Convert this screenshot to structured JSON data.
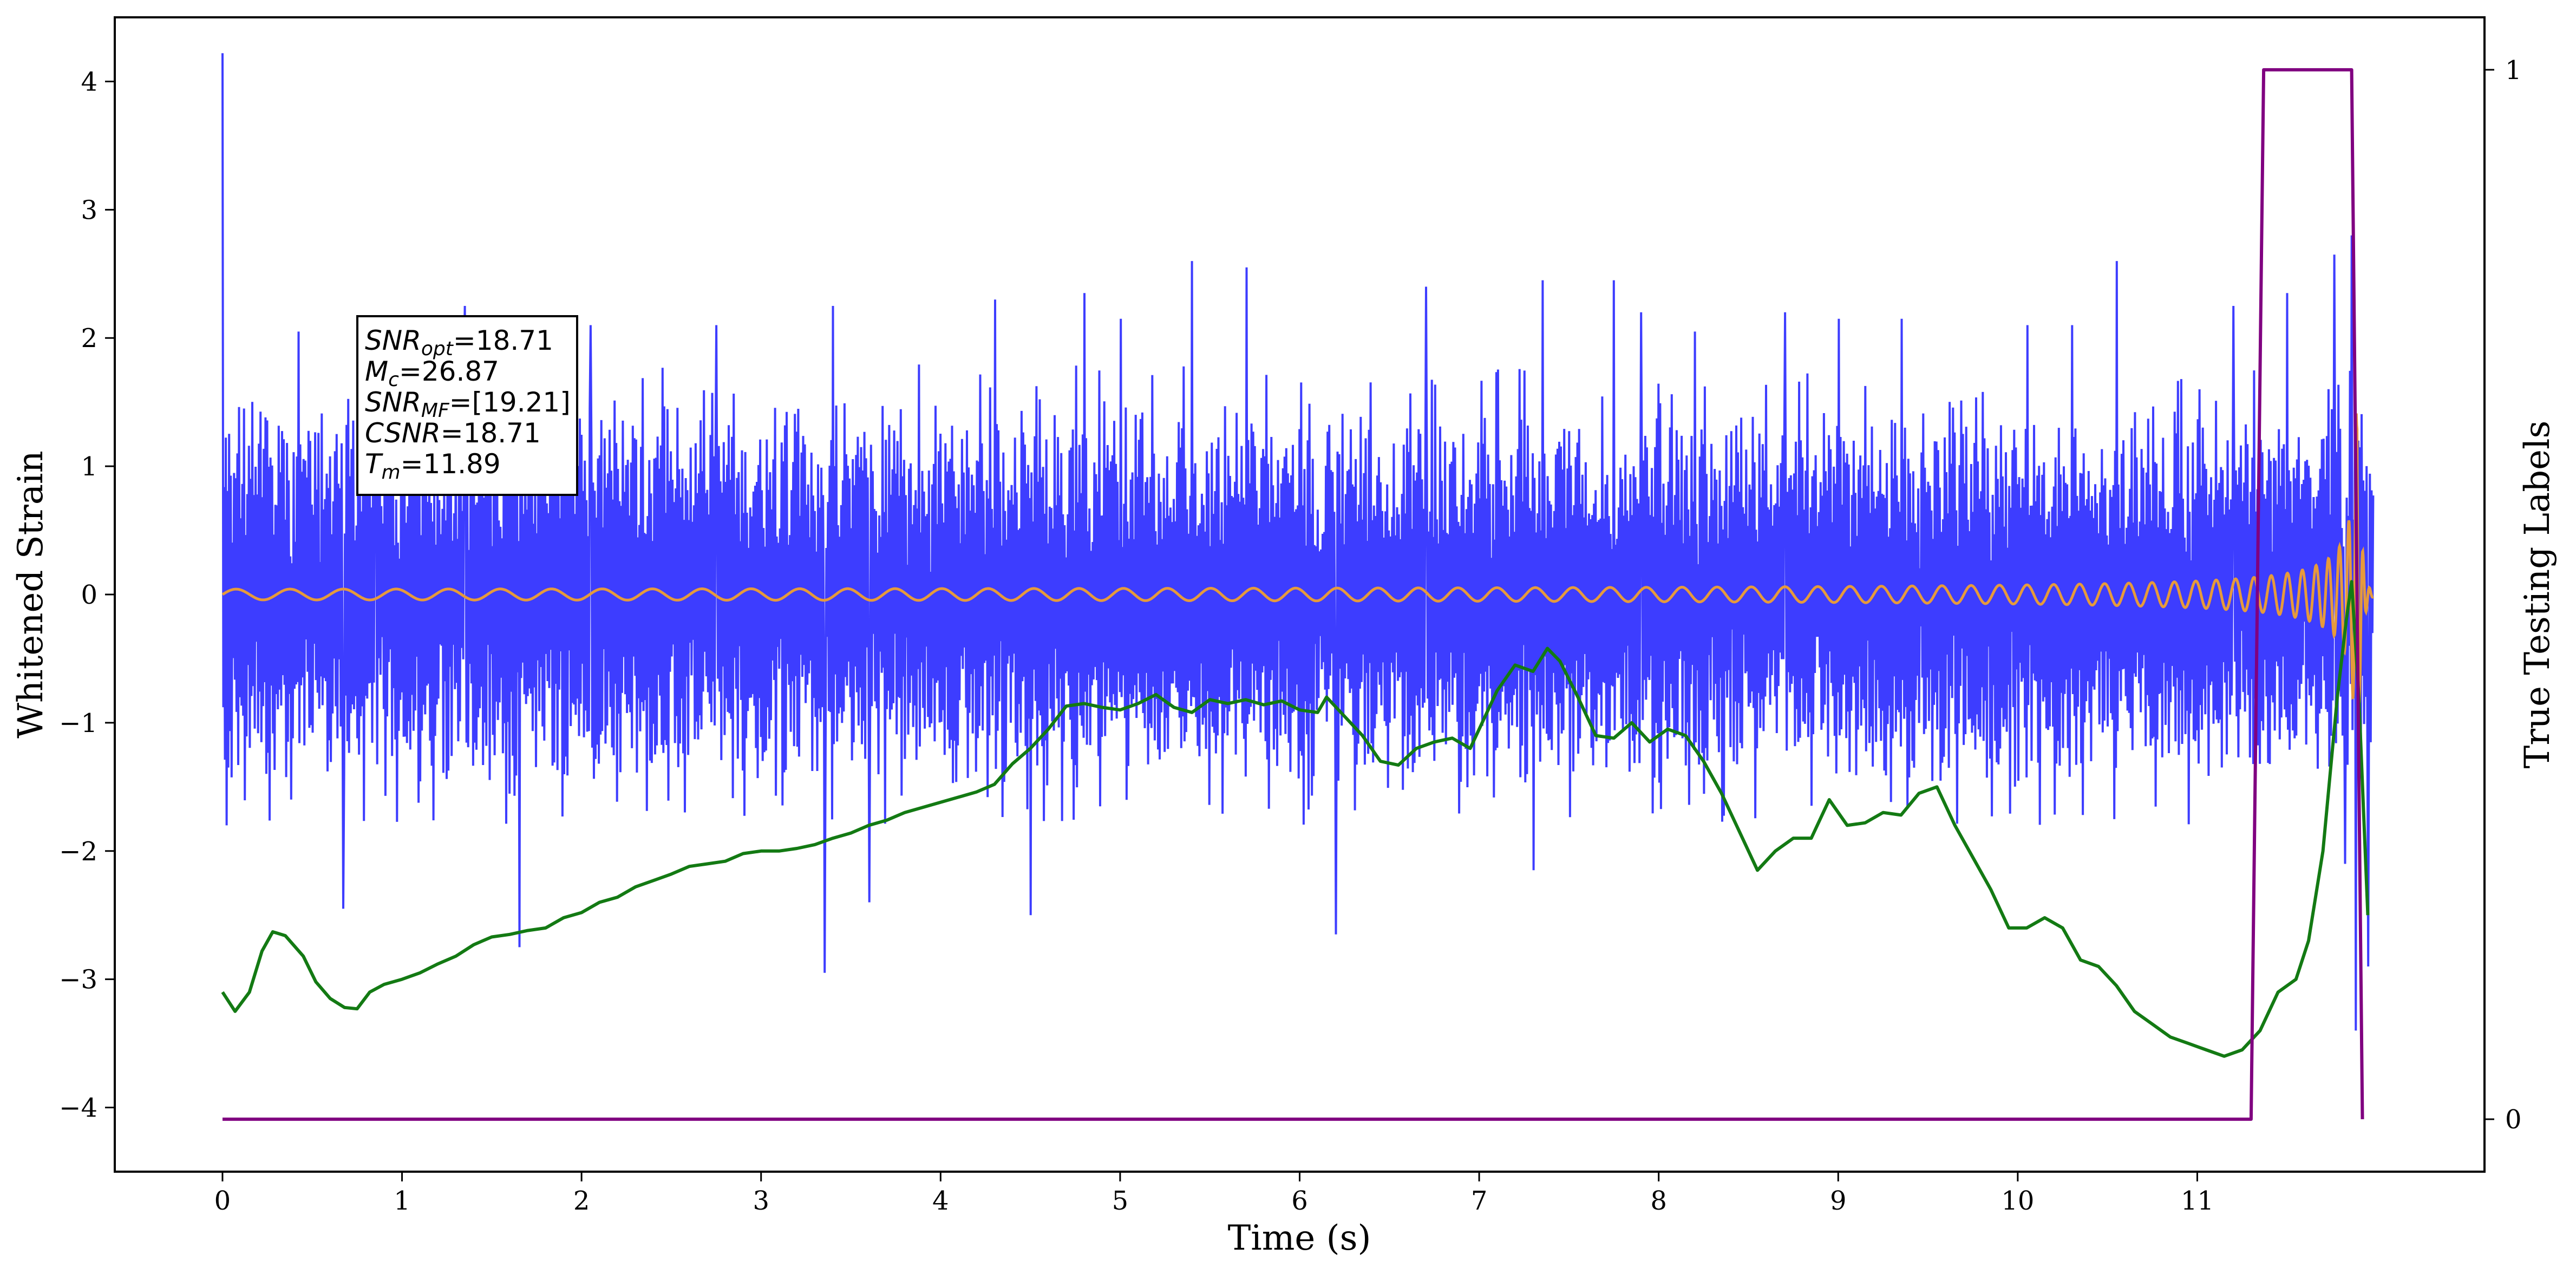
{
  "chart_data": {
    "type": "line",
    "xlabel": "Time (s)",
    "ylabel": "Whitened Strain",
    "y2label": "True Testing Labels",
    "xlim": [
      -0.6,
      12.6
    ],
    "ylim": [
      -4.5,
      4.5
    ],
    "y2lim": [
      -0.05,
      1.05
    ],
    "x_ticks": [
      0,
      1,
      2,
      3,
      4,
      5,
      6,
      7,
      8,
      9,
      10,
      11
    ],
    "y_ticks": [
      -4,
      -3,
      -2,
      -1,
      0,
      1,
      2,
      3,
      4
    ],
    "y2_ticks": [
      0,
      1
    ],
    "grid": false,
    "annotation": [
      {
        "main": "SNR",
        "sub": "opt",
        "value": "=18.71"
      },
      {
        "main": "M",
        "sub": "c",
        "value": "=26.87"
      },
      {
        "main": "SNR",
        "sub": "MF",
        "value": "=[19.21]"
      },
      {
        "main": "CSNR",
        "sub": "",
        "value": "=18.71"
      },
      {
        "main": "T",
        "sub": "m",
        "value": "=11.89"
      }
    ],
    "series": [
      {
        "kind": "noise",
        "color": "#3333ff",
        "x_start": 0.0,
        "x_end": 11.98,
        "typical_range": [
          -1.3,
          1.3
        ],
        "peaks": [
          {
            "x": 0.0,
            "y": 4.22
          },
          {
            "x": 0.02,
            "y": -1.8
          },
          {
            "x": 0.42,
            "y": 2.05
          },
          {
            "x": 0.67,
            "y": -2.45
          },
          {
            "x": 0.85,
            "y": 2.06
          },
          {
            "x": 1.35,
            "y": 2.25
          },
          {
            "x": 1.65,
            "y": -2.75
          },
          {
            "x": 2.05,
            "y": 2.1
          },
          {
            "x": 2.75,
            "y": 2.1
          },
          {
            "x": 3.4,
            "y": 2.25
          },
          {
            "x": 3.35,
            "y": -2.95
          },
          {
            "x": 3.6,
            "y": -2.4
          },
          {
            "x": 4.3,
            "y": 2.3
          },
          {
            "x": 4.5,
            "y": -2.5
          },
          {
            "x": 4.8,
            "y": 2.35
          },
          {
            "x": 5.0,
            "y": 2.15
          },
          {
            "x": 5.4,
            "y": 2.6
          },
          {
            "x": 5.7,
            "y": 2.55
          },
          {
            "x": 6.2,
            "y": -2.65
          },
          {
            "x": 6.7,
            "y": 2.4
          },
          {
            "x": 7.35,
            "y": 2.45
          },
          {
            "x": 7.3,
            "y": -2.15
          },
          {
            "x": 7.75,
            "y": 2.45
          },
          {
            "x": 7.9,
            "y": 2.2
          },
          {
            "x": 8.2,
            "y": 2.05
          },
          {
            "x": 8.7,
            "y": 2.2
          },
          {
            "x": 9.0,
            "y": 2.15
          },
          {
            "x": 9.35,
            "y": 2.15
          },
          {
            "x": 10.05,
            "y": 2.1
          },
          {
            "x": 10.3,
            "y": 2.1
          },
          {
            "x": 10.55,
            "y": 2.6
          },
          {
            "x": 11.2,
            "y": 2.25
          },
          {
            "x": 11.5,
            "y": 2.35
          },
          {
            "x": 11.76,
            "y": 2.65
          },
          {
            "x": 11.82,
            "y": -2.1
          },
          {
            "x": 11.86,
            "y": 2.8
          },
          {
            "x": 11.88,
            "y": -3.4
          },
          {
            "x": 11.95,
            "y": -2.9
          }
        ]
      },
      {
        "kind": "chirp",
        "color": "#e69a3c",
        "x_start": 0.0,
        "x_end": 11.98,
        "merger_x": 11.89,
        "peak_amplitude": 1.7
      },
      {
        "kind": "line",
        "color": "#137a13",
        "axis": "left",
        "points": [
          [
            0.0,
            -3.1
          ],
          [
            0.07,
            -3.25
          ],
          [
            0.15,
            -3.1
          ],
          [
            0.22,
            -2.78
          ],
          [
            0.28,
            -2.63
          ],
          [
            0.35,
            -2.66
          ],
          [
            0.45,
            -2.82
          ],
          [
            0.52,
            -3.02
          ],
          [
            0.6,
            -3.15
          ],
          [
            0.68,
            -3.22
          ],
          [
            0.75,
            -3.23
          ],
          [
            0.82,
            -3.1
          ],
          [
            0.9,
            -3.04
          ],
          [
            1.0,
            -3.0
          ],
          [
            1.1,
            -2.95
          ],
          [
            1.2,
            -2.88
          ],
          [
            1.3,
            -2.82
          ],
          [
            1.4,
            -2.73
          ],
          [
            1.5,
            -2.67
          ],
          [
            1.6,
            -2.65
          ],
          [
            1.7,
            -2.62
          ],
          [
            1.8,
            -2.6
          ],
          [
            1.9,
            -2.52
          ],
          [
            2.0,
            -2.48
          ],
          [
            2.1,
            -2.4
          ],
          [
            2.2,
            -2.36
          ],
          [
            2.3,
            -2.28
          ],
          [
            2.4,
            -2.23
          ],
          [
            2.5,
            -2.18
          ],
          [
            2.6,
            -2.12
          ],
          [
            2.7,
            -2.1
          ],
          [
            2.8,
            -2.08
          ],
          [
            2.9,
            -2.02
          ],
          [
            3.0,
            -2.0
          ],
          [
            3.1,
            -2.0
          ],
          [
            3.2,
            -1.98
          ],
          [
            3.3,
            -1.95
          ],
          [
            3.4,
            -1.9
          ],
          [
            3.5,
            -1.86
          ],
          [
            3.6,
            -1.8
          ],
          [
            3.7,
            -1.76
          ],
          [
            3.8,
            -1.7
          ],
          [
            3.9,
            -1.66
          ],
          [
            4.0,
            -1.62
          ],
          [
            4.1,
            -1.58
          ],
          [
            4.2,
            -1.54
          ],
          [
            4.3,
            -1.48
          ],
          [
            4.4,
            -1.32
          ],
          [
            4.5,
            -1.2
          ],
          [
            4.6,
            -1.05
          ],
          [
            4.7,
            -0.87
          ],
          [
            4.8,
            -0.85
          ],
          [
            4.9,
            -0.88
          ],
          [
            5.0,
            -0.9
          ],
          [
            5.1,
            -0.85
          ],
          [
            5.2,
            -0.78
          ],
          [
            5.3,
            -0.88
          ],
          [
            5.4,
            -0.92
          ],
          [
            5.5,
            -0.82
          ],
          [
            5.6,
            -0.85
          ],
          [
            5.7,
            -0.82
          ],
          [
            5.8,
            -0.86
          ],
          [
            5.9,
            -0.83
          ],
          [
            6.0,
            -0.9
          ],
          [
            6.1,
            -0.92
          ],
          [
            6.15,
            -0.8
          ],
          [
            6.25,
            -0.95
          ],
          [
            6.35,
            -1.1
          ],
          [
            6.45,
            -1.3
          ],
          [
            6.55,
            -1.33
          ],
          [
            6.65,
            -1.2
          ],
          [
            6.75,
            -1.15
          ],
          [
            6.85,
            -1.12
          ],
          [
            6.95,
            -1.2
          ],
          [
            7.0,
            -1.05
          ],
          [
            7.1,
            -0.75
          ],
          [
            7.2,
            -0.55
          ],
          [
            7.3,
            -0.6
          ],
          [
            7.38,
            -0.42
          ],
          [
            7.45,
            -0.52
          ],
          [
            7.55,
            -0.8
          ],
          [
            7.65,
            -1.1
          ],
          [
            7.75,
            -1.12
          ],
          [
            7.85,
            -1.0
          ],
          [
            7.95,
            -1.15
          ],
          [
            8.05,
            -1.05
          ],
          [
            8.15,
            -1.1
          ],
          [
            8.25,
            -1.3
          ],
          [
            8.35,
            -1.55
          ],
          [
            8.45,
            -1.85
          ],
          [
            8.55,
            -2.15
          ],
          [
            8.65,
            -2.0
          ],
          [
            8.75,
            -1.9
          ],
          [
            8.85,
            -1.9
          ],
          [
            8.95,
            -1.6
          ],
          [
            9.05,
            -1.8
          ],
          [
            9.15,
            -1.78
          ],
          [
            9.25,
            -1.7
          ],
          [
            9.35,
            -1.72
          ],
          [
            9.45,
            -1.55
          ],
          [
            9.55,
            -1.5
          ],
          [
            9.65,
            -1.8
          ],
          [
            9.75,
            -2.05
          ],
          [
            9.85,
            -2.3
          ],
          [
            9.95,
            -2.6
          ],
          [
            10.05,
            -2.6
          ],
          [
            10.15,
            -2.52
          ],
          [
            10.25,
            -2.6
          ],
          [
            10.35,
            -2.85
          ],
          [
            10.45,
            -2.9
          ],
          [
            10.55,
            -3.05
          ],
          [
            10.65,
            -3.25
          ],
          [
            10.75,
            -3.35
          ],
          [
            10.85,
            -3.45
          ],
          [
            10.95,
            -3.5
          ],
          [
            11.05,
            -3.55
          ],
          [
            11.15,
            -3.6
          ],
          [
            11.25,
            -3.55
          ],
          [
            11.35,
            -3.4
          ],
          [
            11.45,
            -3.1
          ],
          [
            11.55,
            -3.0
          ],
          [
            11.62,
            -2.7
          ],
          [
            11.7,
            -2.0
          ],
          [
            11.78,
            -0.8
          ],
          [
            11.83,
            -0.2
          ],
          [
            11.86,
            0.1
          ],
          [
            11.9,
            -0.8
          ],
          [
            11.95,
            -2.5
          ]
        ]
      },
      {
        "kind": "line",
        "color": "#800080",
        "axis": "right",
        "points": [
          [
            0.0,
            0
          ],
          [
            11.3,
            0
          ],
          [
            11.37,
            1
          ],
          [
            11.86,
            1
          ],
          [
            11.92,
            0
          ]
        ]
      }
    ]
  }
}
